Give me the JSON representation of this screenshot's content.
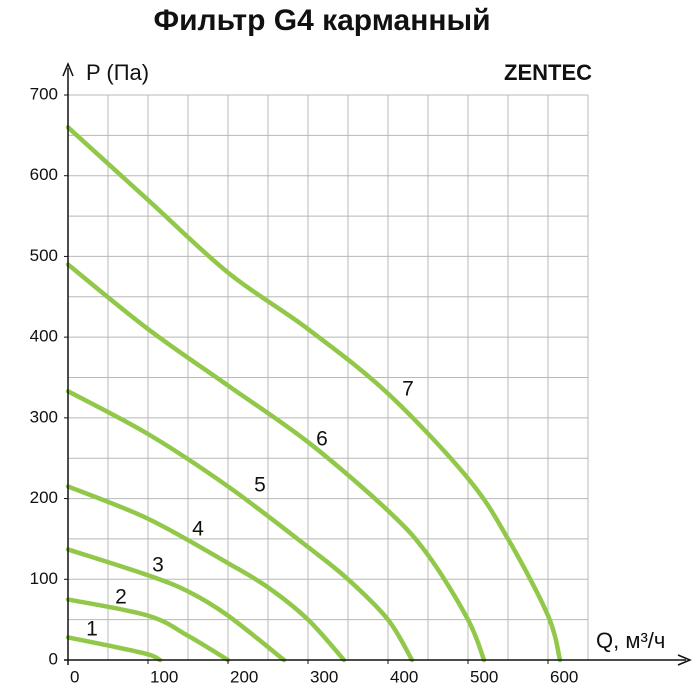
{
  "chart_data": {
    "type": "line",
    "title": "Фильтр G4 карманный",
    "brand": "ZENTEC",
    "y_label": "P (Па)",
    "x_label": "Q, м³/ч",
    "xlim": [
      0,
      650
    ],
    "ylim": [
      0,
      700
    ],
    "xticks": [
      0,
      100,
      200,
      300,
      400,
      500,
      600
    ],
    "yticks": [
      0,
      100,
      200,
      300,
      400,
      500,
      600,
      700
    ],
    "grid_step_x": 50,
    "grid_step_y": 50,
    "grid": true,
    "series": [
      {
        "name": "1",
        "color": "#92c84a",
        "x": [
          0,
          50,
          100,
          115
        ],
        "values": [
          28,
          18,
          7,
          0
        ]
      },
      {
        "name": "2",
        "color": "#92c84a",
        "x": [
          0,
          100,
          150,
          200
        ],
        "values": [
          75,
          55,
          30,
          0
        ]
      },
      {
        "name": "3",
        "color": "#92c84a",
        "x": [
          0,
          100,
          150,
          200,
          270
        ],
        "values": [
          137,
          105,
          85,
          55,
          0
        ]
      },
      {
        "name": "4",
        "color": "#92c84a",
        "x": [
          0,
          100,
          200,
          250,
          300,
          345
        ],
        "values": [
          215,
          175,
          120,
          90,
          50,
          0
        ]
      },
      {
        "name": "5",
        "color": "#92c84a",
        "x": [
          0,
          100,
          200,
          300,
          350,
          400,
          430
        ],
        "values": [
          333,
          280,
          215,
          140,
          100,
          50,
          0
        ]
      },
      {
        "name": "6",
        "color": "#92c84a",
        "x": [
          0,
          100,
          200,
          300,
          400,
          450,
          500,
          520
        ],
        "values": [
          490,
          410,
          340,
          270,
          185,
          130,
          50,
          0
        ]
      },
      {
        "name": "7",
        "color": "#92c84a",
        "x": [
          0,
          100,
          200,
          300,
          400,
          500,
          550,
          600,
          615
        ],
        "values": [
          660,
          570,
          480,
          410,
          330,
          225,
          150,
          55,
          0
        ]
      }
    ]
  }
}
